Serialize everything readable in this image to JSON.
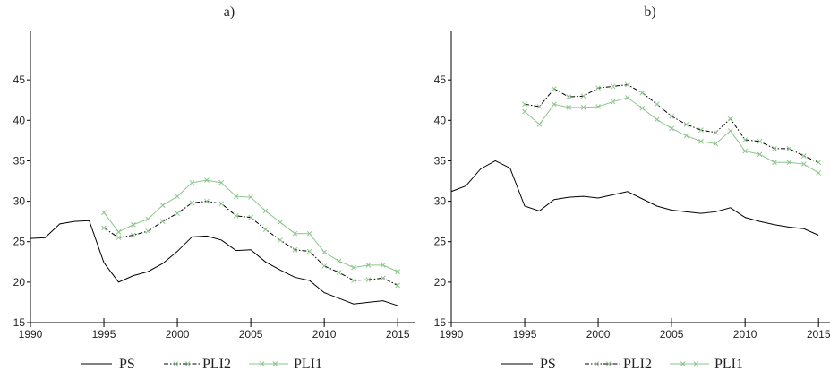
{
  "chart_data": [
    {
      "type": "line",
      "title": "a)",
      "xlim": [
        1990,
        2017
      ],
      "ylim": [
        15,
        51
      ],
      "xticks": [
        1990,
        1995,
        2000,
        2005,
        2010,
        2015
      ],
      "yticks": [
        15,
        20,
        25,
        30,
        35,
        40,
        45
      ],
      "series": [
        {
          "name": "PS",
          "color": "#000000",
          "dash": "solid",
          "marker": "none",
          "x": [
            1990,
            1991,
            1992,
            1993,
            1994,
            1995,
            1996,
            1997,
            1998,
            1999,
            2000,
            2001,
            2002,
            2003,
            2004,
            2005,
            2006,
            2007,
            2008,
            2009,
            2010,
            2011,
            2012,
            2013,
            2014,
            2015
          ],
          "values": [
            25.4,
            25.5,
            27.2,
            27.5,
            27.6,
            22.4,
            20.0,
            20.8,
            21.3,
            22.3,
            23.8,
            25.6,
            25.7,
            25.2,
            23.9,
            24.0,
            22.5,
            21.5,
            20.6,
            20.2,
            18.7,
            18.0,
            17.3,
            17.5,
            17.7,
            17.1
          ]
        },
        {
          "name": "PLI2",
          "color": "#000000",
          "dash": "dashdot",
          "marker": "x",
          "x": [
            1995,
            1996,
            1997,
            1998,
            1999,
            2000,
            2001,
            2002,
            2003,
            2004,
            2005,
            2006,
            2007,
            2008,
            2009,
            2010,
            2011,
            2012,
            2013,
            2014,
            2015
          ],
          "values": [
            26.7,
            25.5,
            25.8,
            26.3,
            27.5,
            28.5,
            29.8,
            30.0,
            29.7,
            28.2,
            28.0,
            26.5,
            25.2,
            24.0,
            23.8,
            22.0,
            21.2,
            20.2,
            20.3,
            20.5,
            19.6
          ]
        },
        {
          "name": "PLI1",
          "color": "#8cc68c",
          "dash": "solid",
          "marker": "x",
          "x": [
            1995,
            1996,
            1997,
            1998,
            1999,
            2000,
            2001,
            2002,
            2003,
            2004,
            2005,
            2006,
            2007,
            2008,
            2009,
            2010,
            2011,
            2012,
            2013,
            2014,
            2015
          ],
          "values": [
            28.6,
            26.2,
            27.1,
            27.8,
            29.5,
            30.6,
            32.3,
            32.6,
            32.3,
            30.6,
            30.5,
            28.8,
            27.4,
            26.0,
            26.0,
            23.7,
            22.6,
            21.8,
            22.1,
            22.1,
            21.3
          ]
        }
      ]
    },
    {
      "type": "line",
      "title": "b)",
      "xlim": [
        1990,
        2017
      ],
      "ylim": [
        15,
        51
      ],
      "xticks": [
        1990,
        1995,
        2000,
        2005,
        2010,
        2015
      ],
      "yticks": [
        15,
        20,
        25,
        30,
        35,
        40,
        45
      ],
      "series": [
        {
          "name": "PS",
          "color": "#000000",
          "dash": "solid",
          "marker": "none",
          "x": [
            1990,
            1991,
            1992,
            1993,
            1994,
            1995,
            1996,
            1997,
            1998,
            1999,
            2000,
            2001,
            2002,
            2003,
            2004,
            2005,
            2006,
            2007,
            2008,
            2009,
            2010,
            2011,
            2012,
            2013,
            2014,
            2015
          ],
          "values": [
            31.2,
            31.9,
            34.0,
            35.0,
            34.1,
            29.4,
            28.8,
            30.2,
            30.5,
            30.6,
            30.4,
            30.8,
            31.2,
            30.3,
            29.4,
            28.9,
            28.7,
            28.5,
            28.7,
            29.2,
            28.0,
            27.5,
            27.1,
            26.8,
            26.6,
            25.8
          ]
        },
        {
          "name": "PLI2",
          "color": "#000000",
          "dash": "dashdot",
          "marker": "x",
          "x": [
            1995,
            1996,
            1997,
            1998,
            1999,
            2000,
            2001,
            2002,
            2003,
            2004,
            2005,
            2006,
            2007,
            2008,
            2009,
            2010,
            2011,
            2012,
            2013,
            2014,
            2015
          ],
          "values": [
            42.0,
            41.7,
            43.9,
            42.9,
            43.0,
            44.0,
            44.2,
            44.4,
            43.4,
            42.0,
            40.5,
            39.5,
            38.8,
            38.5,
            40.2,
            37.6,
            37.4,
            36.5,
            36.5,
            35.6,
            34.8
          ]
        },
        {
          "name": "PLI1",
          "color": "#8cc68c",
          "dash": "solid",
          "marker": "x",
          "x": [
            1995,
            1996,
            1997,
            1998,
            1999,
            2000,
            2001,
            2002,
            2003,
            2004,
            2005,
            2006,
            2007,
            2008,
            2009,
            2010,
            2011,
            2012,
            2013,
            2014,
            2015
          ],
          "values": [
            41.1,
            39.5,
            42.0,
            41.6,
            41.6,
            41.7,
            42.3,
            42.8,
            41.5,
            40.1,
            39.0,
            38.1,
            37.4,
            37.1,
            38.7,
            36.2,
            35.8,
            34.8,
            34.8,
            34.6,
            33.5
          ]
        }
      ]
    }
  ]
}
